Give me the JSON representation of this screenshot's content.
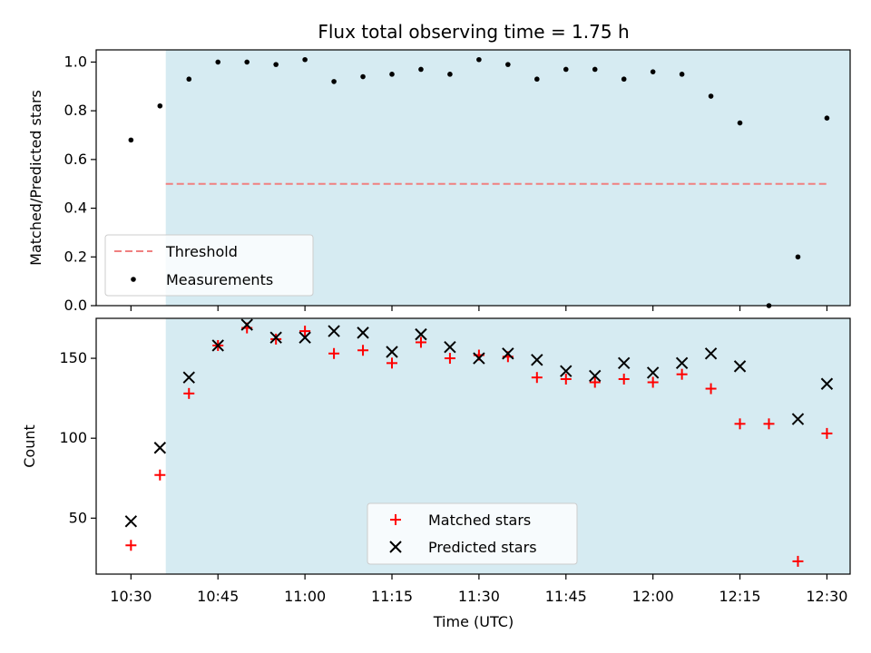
{
  "chart_data": {
    "type": "scatter",
    "title": "Flux total observing time = 1.75 h",
    "xlabel": "Time (UTC)",
    "x_ticks": [
      "10:30",
      "10:45",
      "11:00",
      "11:15",
      "11:30",
      "11:45",
      "12:00",
      "12:15",
      "12:30"
    ],
    "x_tick_minutes": [
      630,
      645,
      660,
      675,
      690,
      705,
      720,
      735,
      750
    ],
    "xlim_minutes": [
      624,
      754
    ],
    "shaded_interval_minutes": [
      636,
      764
    ],
    "shade_color": "#add8e6",
    "top_panel": {
      "ylabel": "Matched/Predicted stars",
      "ylim": [
        0,
        1.05
      ],
      "y_ticks": [
        "0.0",
        "0.2",
        "0.4",
        "0.6",
        "0.8",
        "1.0"
      ],
      "y_tick_values": [
        0,
        0.2,
        0.4,
        0.6,
        0.8,
        1.0
      ],
      "threshold": {
        "name": "Threshold",
        "value": 0.5,
        "x_range_minutes": [
          636,
          750
        ],
        "color": "#f08080"
      },
      "measurements": {
        "name": "Measurements",
        "color": "#000000",
        "x_minutes": [
          630,
          635,
          640,
          645,
          650,
          655,
          660,
          665,
          670,
          675,
          680,
          685,
          690,
          695,
          700,
          705,
          710,
          715,
          720,
          725,
          730,
          735,
          740,
          745,
          750
        ],
        "y": [
          0.68,
          0.82,
          0.93,
          1.0,
          1.0,
          0.99,
          1.01,
          0.92,
          0.94,
          0.95,
          0.97,
          0.95,
          1.01,
          0.99,
          0.93,
          0.97,
          0.97,
          0.93,
          0.96,
          0.95,
          0.86,
          0.75,
          0.0,
          0.2,
          0.77
        ]
      },
      "legend": {
        "threshold_label": "Threshold",
        "measurements_label": "Measurements"
      }
    },
    "bottom_panel": {
      "ylabel": "Count",
      "ylim": [
        15,
        175
      ],
      "y_ticks": [
        "50",
        "100",
        "150"
      ],
      "y_tick_values": [
        50,
        100,
        150
      ],
      "series": [
        {
          "name": "Matched stars",
          "marker": "plus",
          "color": "#ff0000",
          "x_minutes": [
            630,
            635,
            640,
            645,
            650,
            655,
            660,
            665,
            670,
            675,
            680,
            685,
            690,
            695,
            700,
            705,
            710,
            715,
            720,
            725,
            730,
            735,
            740,
            745,
            750
          ],
          "values": [
            33,
            77,
            128,
            158,
            169,
            162,
            167,
            153,
            155,
            147,
            160,
            150,
            152,
            151,
            138,
            137,
            135,
            137,
            135,
            140,
            131,
            109,
            109,
            23,
            103
          ]
        },
        {
          "name": "Predicted stars",
          "marker": "x",
          "color": "#000000",
          "x_minutes": [
            630,
            635,
            640,
            645,
            650,
            655,
            660,
            665,
            670,
            675,
            680,
            685,
            690,
            695,
            700,
            705,
            710,
            715,
            720,
            725,
            730,
            735,
            745,
            750
          ],
          "values": [
            48,
            94,
            138,
            158,
            171,
            163,
            163,
            167,
            166,
            154,
            165,
            157,
            150,
            153,
            149,
            142,
            139,
            147,
            141,
            147,
            153,
            145,
            112,
            134
          ]
        }
      ],
      "legend": {
        "matched_label": "Matched stars",
        "predicted_label": "Predicted stars"
      }
    }
  }
}
